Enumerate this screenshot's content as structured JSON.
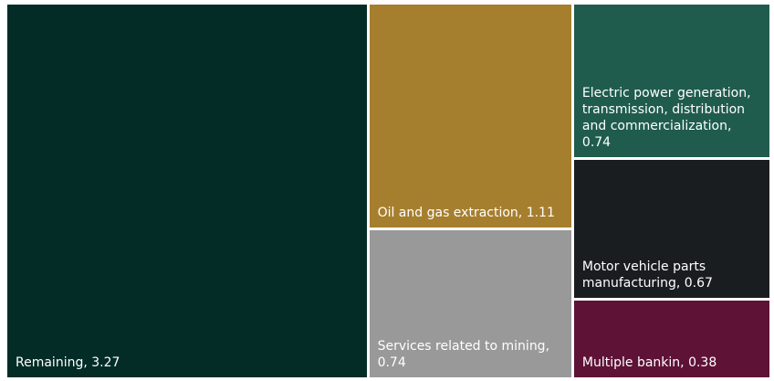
{
  "chart_data": {
    "type": "treemap",
    "title": "",
    "series": [
      {
        "label": "Remaining",
        "value": 3.27,
        "color": "#032c26"
      },
      {
        "label": "Oil and gas extraction",
        "value": 1.11,
        "color": "#a67f2e"
      },
      {
        "label": "Services related to mining",
        "value": 0.74,
        "color": "#999999"
      },
      {
        "label": "Electric power generation, transmission, distribution and commercialization",
        "value": 0.74,
        "color": "#1f5c4e"
      },
      {
        "label": "Motor vehicle parts manufacturing",
        "value": 0.67,
        "color": "#1a1d20"
      },
      {
        "label": "Multiple bankin",
        "value": 0.38,
        "color": "#5e1236"
      }
    ]
  }
}
